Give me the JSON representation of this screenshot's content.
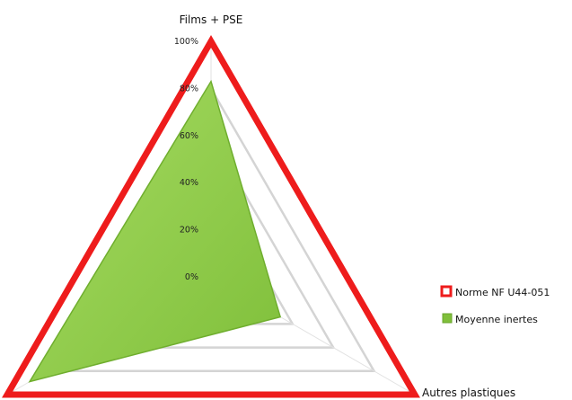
{
  "chart_data": {
    "type": "radar",
    "axes": [
      "Films + PSE",
      "Autres plastiques",
      ""
    ],
    "r_ticks": [
      "0%",
      "20%",
      "40%",
      "60%",
      "80%",
      "100%"
    ],
    "r_range": [
      0,
      100
    ],
    "grid": true,
    "legend_position": "right",
    "series": [
      {
        "name": "Norme NF U44-051",
        "color": "#ee1c1c",
        "fill": "none",
        "values": [
          100,
          100,
          100
        ]
      },
      {
        "name": "Moyenne inertes",
        "color": "#6fae2e",
        "fill": "#92d050",
        "values": [
          83,
          34,
          89
        ]
      }
    ]
  }
}
